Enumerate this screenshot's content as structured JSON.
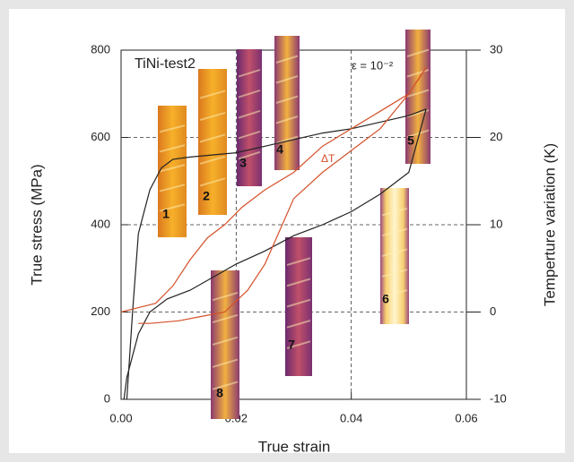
{
  "chart_data": {
    "type": "line",
    "title": "TiNi-test2",
    "annotations": [
      "ε = 10⁻²",
      "ΔT"
    ],
    "xlabel": "True strain",
    "ylabel": "True stress (MPa)",
    "y2label": "Temperture variation (K)",
    "xlim": [
      0,
      0.06
    ],
    "ylim": [
      0,
      800
    ],
    "y2lim": [
      -10,
      30
    ],
    "xticks": [
      {
        "value": 0,
        "label": "0.00"
      },
      0.02,
      0.04,
      0.06
    ],
    "yticks": [
      0,
      200,
      400,
      600,
      800
    ],
    "y2ticks": [
      -10,
      0,
      10,
      20,
      30
    ],
    "grid": true,
    "series": [
      {
        "color": "#222222",
        "x": [
          0.001,
          0.002,
          0.003,
          0.005,
          0.007,
          0.009,
          0.012,
          0.016,
          0.02,
          0.025,
          0.03,
          0.035,
          0.04,
          0.045,
          0.05,
          0.053
        ],
        "values": [
          0,
          200,
          380,
          480,
          530,
          550,
          555,
          560,
          565,
          580,
          595,
          610,
          620,
          635,
          650,
          665
        ]
      },
      {
        "color": "#222222",
        "x": [
          0.053,
          0.05,
          0.045,
          0.04,
          0.035,
          0.03,
          0.025,
          0.02,
          0.016,
          0.012,
          0.008,
          0.005,
          0.003,
          0.002,
          0.001,
          0.0005
        ],
        "values": [
          665,
          520,
          470,
          430,
          400,
          375,
          340,
          310,
          280,
          250,
          230,
          200,
          150,
          100,
          50,
          0
        ]
      },
      {
        "color": "#d4502a",
        "axis": "y2",
        "x": [
          0,
          0.003,
          0.006,
          0.009,
          0.012,
          0.015,
          0.018,
          0.021,
          0.025,
          0.03,
          0.035,
          0.04,
          0.045,
          0.05,
          0.053
        ],
        "values": [
          0,
          0.5,
          1,
          3,
          6,
          8.5,
          10,
          12,
          14,
          16,
          19,
          21,
          23,
          25,
          28
        ]
      },
      {
        "color": "#d4502a",
        "axis": "y2",
        "x": [
          0.053,
          0.05,
          0.045,
          0.04,
          0.035,
          0.03,
          0.028,
          0.025,
          0.022,
          0.018,
          0.014,
          0.01,
          0.005,
          0.003
        ],
        "values": [
          28,
          25,
          21,
          18.5,
          16,
          13,
          10,
          5.5,
          2.5,
          0,
          -0.5,
          -1,
          -1.3,
          -1.3
        ]
      }
    ],
    "images": [
      "1",
      "2",
      "3",
      "4",
      "5",
      "6",
      "7",
      "8"
    ]
  }
}
